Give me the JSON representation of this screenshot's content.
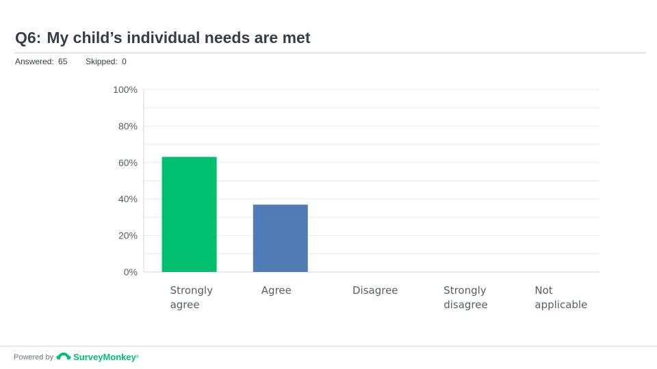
{
  "header": {
    "question_number": "Q6:",
    "question_text": "My child’s individual needs are met",
    "answered_label": "Answered:",
    "answered_value": "65",
    "skipped_label": "Skipped:",
    "skipped_value": "0"
  },
  "footer": {
    "powered_by": "Powered by",
    "brand": "SurveyMonkey",
    "logo_icon": "surveymonkey-logo-icon"
  },
  "chart_data": {
    "type": "bar",
    "categories": [
      [
        "Strongly",
        "agree"
      ],
      [
        "Agree"
      ],
      [
        "Disagree"
      ],
      [
        "Strongly",
        "disagree"
      ],
      [
        "Not",
        "applicable"
      ]
    ],
    "values": [
      63.08,
      36.92,
      0,
      0,
      0
    ],
    "colors": [
      "#00bf6f",
      "#507cb6",
      "#f9be00",
      "#6bc8cd",
      "#ff8b4f"
    ],
    "yticks": [
      "0%",
      "20%",
      "40%",
      "60%",
      "80%",
      "100%"
    ],
    "ylim": [
      0,
      100
    ],
    "grid": true
  }
}
